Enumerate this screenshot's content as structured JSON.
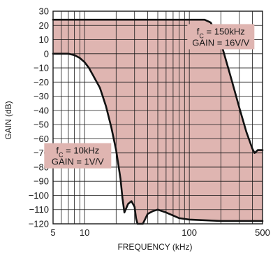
{
  "chart_data": {
    "type": "line",
    "xlabel": "FREQUENCY (kHz)",
    "ylabel": "GAIN (dB)",
    "x_scale": "log",
    "xlim": [
      5,
      500
    ],
    "ylim": [
      -120,
      30
    ],
    "grid": true,
    "x_tick_labels": [
      {
        "value": 5,
        "label": "5"
      },
      {
        "value": 10,
        "label": "10"
      },
      {
        "value": 100,
        "label": "100"
      },
      {
        "value": 500,
        "label": "500"
      }
    ],
    "y_ticks": [
      30,
      20,
      10,
      0,
      -10,
      -20,
      -30,
      -40,
      -50,
      -60,
      -70,
      -80,
      -90,
      -100,
      -110,
      -120
    ],
    "y_tick_labels": [
      "30",
      "20",
      "10",
      "0",
      "−10",
      "−20",
      "−30",
      "−40",
      "−50",
      "−60",
      "−70",
      "−80",
      "−90",
      "−100",
      "−110",
      "−120"
    ],
    "shaded_region_color": "#dfb5b1",
    "line_color": "#111111",
    "series": [
      {
        "points": [
          [
            5,
            24
          ],
          [
            20,
            24
          ],
          [
            50,
            24
          ],
          [
            100,
            24
          ],
          [
            140,
            24
          ],
          [
            160,
            22
          ],
          [
            180,
            15
          ],
          [
            200,
            8
          ],
          [
            250,
            -17
          ],
          [
            300,
            -38
          ],
          [
            350,
            -55
          ],
          [
            400,
            -67
          ],
          [
            420,
            -70
          ],
          [
            450,
            -68
          ],
          [
            500,
            -68
          ]
        ]
      },
      {
        "points": [
          [
            5,
            0
          ],
          [
            7,
            0
          ],
          [
            8,
            -1
          ],
          [
            9,
            -3
          ],
          [
            10,
            -6
          ],
          [
            11,
            -10
          ],
          [
            12,
            -15
          ],
          [
            14,
            -24
          ],
          [
            16,
            -37
          ],
          [
            18,
            -52
          ],
          [
            20,
            -68
          ],
          [
            22,
            -88
          ],
          [
            23,
            -102
          ],
          [
            24,
            -112
          ],
          [
            26,
            -106
          ],
          [
            28,
            -104
          ],
          [
            30,
            -108
          ],
          [
            31,
            -116
          ],
          [
            32,
            -120
          ],
          [
            36,
            -120
          ],
          [
            40,
            -113
          ],
          [
            45,
            -111
          ],
          [
            50,
            -110
          ],
          [
            60,
            -112
          ],
          [
            80,
            -116
          ],
          [
            100,
            -117
          ],
          [
            200,
            -118
          ],
          [
            500,
            -118
          ]
        ]
      }
    ],
    "annotations": [
      {
        "id": "fc150",
        "line1_main": "f",
        "line1_sub": "C",
        "line1_rest": " = 150kHz",
        "line2": "GAIN = 16V/V",
        "anchor_x": 200,
        "anchor_y": 12
      },
      {
        "id": "fc10",
        "line1_main": "f",
        "line1_sub": "C",
        "line1_rest": " = 10kHz",
        "line2": "GAIN = 1V/V",
        "anchor_x": 8.6,
        "anchor_y": -72
      }
    ]
  }
}
